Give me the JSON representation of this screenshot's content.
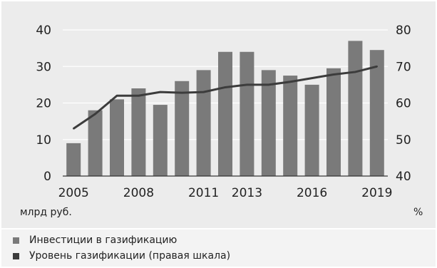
{
  "chart_data": {
    "type": "bar",
    "categories": [
      "2005",
      "2006",
      "2007",
      "2008",
      "2009",
      "2010",
      "2011",
      "2012",
      "2013",
      "2014",
      "2015",
      "2016",
      "2017",
      "2018",
      "2019"
    ],
    "x_tick_labels": [
      "2005",
      "2008",
      "2011",
      "2013",
      "2016",
      "2019"
    ],
    "series": [
      {
        "name": "Инвестиции в газификацию",
        "type": "bar",
        "axis": "left",
        "values": [
          9,
          18,
          21,
          24,
          19.5,
          26,
          29,
          34,
          34,
          29,
          27.5,
          25,
          29.5,
          37,
          34.5
        ]
      },
      {
        "name": "Уровень газификации (правая шкала)",
        "type": "line",
        "axis": "right",
        "values": [
          53,
          57,
          62,
          62,
          63,
          62.8,
          63,
          64.3,
          65,
          65,
          65.8,
          66.8,
          67.8,
          68.5,
          70
        ]
      }
    ],
    "left_axis": {
      "ylim": [
        0,
        40
      ],
      "ticks": [
        "0",
        "10",
        "20",
        "30",
        "40"
      ],
      "unit": "млрд руб."
    },
    "right_axis": {
      "ylim": [
        40,
        80
      ],
      "ticks": [
        "40",
        "50",
        "60",
        "70",
        "80"
      ],
      "unit": "%"
    },
    "grid": true,
    "legend_position": "bottom",
    "colors": {
      "bar": "#7a7a7a",
      "line": "#3c3c3c",
      "grid": "#ffffff",
      "background": "#ececec"
    }
  }
}
